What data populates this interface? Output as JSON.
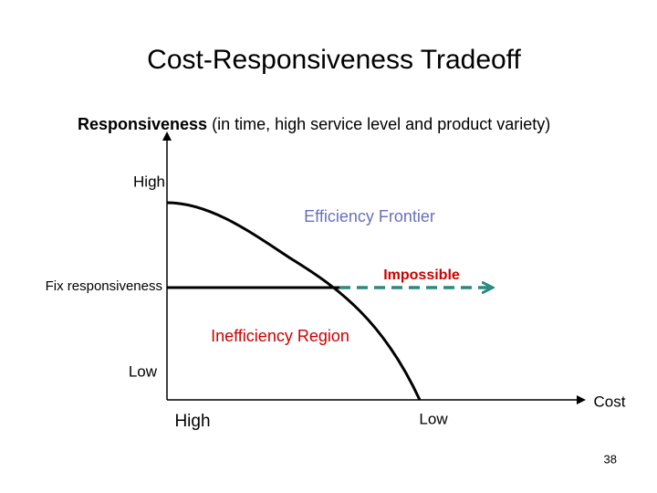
{
  "title": "Cost-Responsiveness Tradeoff",
  "axis_label": {
    "bold": "Responsiveness",
    "rest": " (in time, high service level and product variety)"
  },
  "y_axis": {
    "high": "High",
    "low": "Low"
  },
  "x_axis": {
    "high": "High",
    "low": "Low",
    "label": "Cost"
  },
  "regions": {
    "frontier": "Efficiency Frontier",
    "impossible": "Impossible",
    "inefficiency": "Inefficiency Region"
  },
  "fix_line": "Fix responsiveness",
  "page_number": "38"
}
